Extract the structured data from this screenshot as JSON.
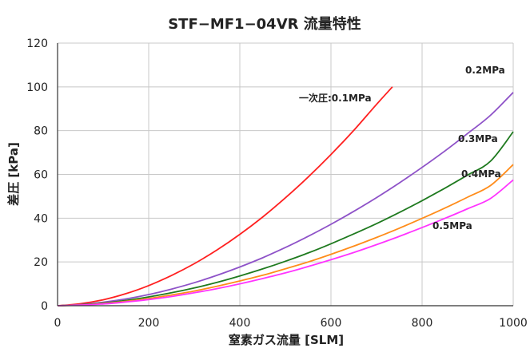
{
  "chart_data": {
    "type": "line",
    "title": "STF−MF1−04VR 流量特性",
    "xlabel": "窒素ガス流量 [SLM]",
    "ylabel": "差圧 [kPa]",
    "xlim": [
      0,
      1000
    ],
    "ylim": [
      0,
      120
    ],
    "x_ticks": [
      "0",
      "200",
      "400",
      "600",
      "800",
      "1000"
    ],
    "y_ticks": [
      "0",
      "20",
      "40",
      "60",
      "80",
      "100",
      "120"
    ],
    "grid": true,
    "legend": "inline labels next to curves",
    "series": [
      {
        "name": "一次圧:0.1MPa",
        "color": "#ff2020",
        "x": [
          0,
          50,
          100,
          150,
          200,
          250,
          300,
          350,
          400,
          450,
          500,
          550,
          600,
          650,
          700,
          735
        ],
        "y": [
          0,
          0.9,
          2.7,
          5.5,
          9.2,
          13.8,
          19.2,
          25.5,
          32.6,
          40.5,
          49.3,
          58.8,
          69.1,
          80.1,
          92,
          100
        ]
      },
      {
        "name": "0.2MPa",
        "color": "#8e52c8",
        "x": [
          0,
          50,
          100,
          150,
          200,
          250,
          300,
          350,
          400,
          450,
          500,
          550,
          600,
          650,
          700,
          750,
          800,
          850,
          900,
          950,
          1000
        ],
        "y": [
          0,
          0.5,
          1.6,
          3.1,
          5.1,
          7.6,
          10.5,
          13.9,
          17.7,
          21.9,
          26.6,
          31.7,
          37.2,
          43.1,
          49.4,
          56.1,
          63.2,
          70.7,
          78.7,
          87,
          97.5
        ]
      },
      {
        "name": "0.3MPa",
        "color": "#1f7a1f",
        "x": [
          0,
          50,
          100,
          150,
          200,
          250,
          300,
          350,
          400,
          450,
          500,
          550,
          600,
          650,
          700,
          750,
          800,
          850,
          900,
          950,
          1000
        ],
        "y": [
          0,
          0.4,
          1.2,
          2.4,
          4,
          5.9,
          8.1,
          10.7,
          13.6,
          16.8,
          20.3,
          24.1,
          28.3,
          32.8,
          37.5,
          42.6,
          48,
          53.7,
          59.7,
          66,
          79.5
        ]
      },
      {
        "name": "0.4MPa",
        "color": "#ff8c1a",
        "x": [
          0,
          50,
          100,
          150,
          200,
          250,
          300,
          350,
          400,
          450,
          500,
          550,
          600,
          650,
          700,
          750,
          800,
          850,
          900,
          950,
          1000
        ],
        "y": [
          0,
          0.3,
          1,
          2,
          3.3,
          4.9,
          6.7,
          8.9,
          11.3,
          13.9,
          16.9,
          20,
          23.5,
          27.2,
          31.2,
          35.4,
          39.9,
          44.6,
          49.6,
          54.9,
          64.5
        ]
      },
      {
        "name": "0.5MPa",
        "color": "#ff33ff",
        "x": [
          0,
          50,
          100,
          150,
          200,
          250,
          300,
          350,
          400,
          450,
          500,
          550,
          600,
          650,
          700,
          750,
          800,
          850,
          900,
          950,
          1000
        ],
        "y": [
          0,
          0.3,
          0.8,
          1.7,
          2.8,
          4.2,
          5.9,
          7.8,
          10,
          12.4,
          15,
          17.9,
          21,
          24.3,
          27.9,
          31.7,
          35.7,
          39.9,
          44.3,
          49,
          57.5
        ]
      }
    ]
  }
}
